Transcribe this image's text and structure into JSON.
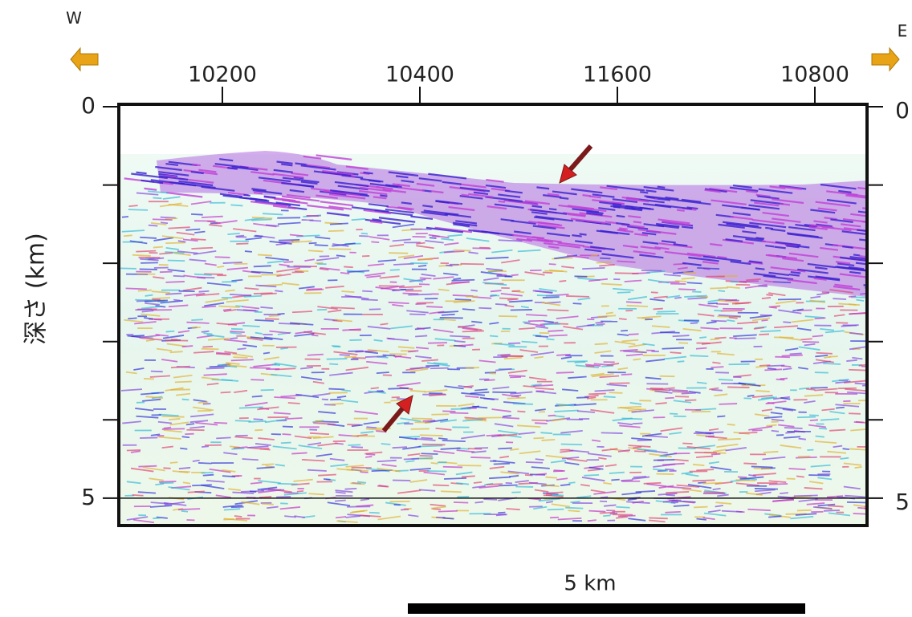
{
  "directions": {
    "west": "W",
    "east": "E"
  },
  "shot_points": [
    "10200",
    "10400",
    "11600",
    "10800"
  ],
  "depth_axis": {
    "label": "深さ (km)",
    "range": [
      0,
      5.35
    ],
    "ticks": [
      0,
      1,
      2,
      3,
      4,
      5
    ],
    "tick_labels": [
      "0",
      null,
      null,
      null,
      null,
      "5"
    ]
  },
  "scale_bar": {
    "label": "5 km"
  }
}
